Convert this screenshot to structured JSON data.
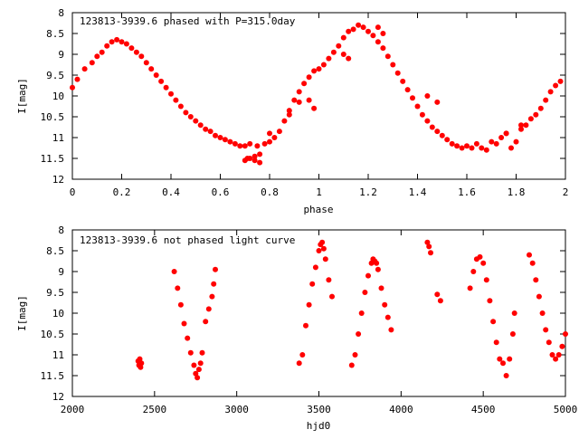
{
  "chart_data": [
    {
      "type": "scatter",
      "title": "123813-3939.6 phased with P=315.0day",
      "xlabel": "phase",
      "ylabel": "I[mag]",
      "xlim": [
        0,
        2
      ],
      "ylim": [
        12,
        8
      ],
      "y_reversed": true,
      "grid": false,
      "x_ticks": [
        "0",
        "0.2",
        "0.4",
        "0.6",
        "0.8",
        "1",
        "1.2",
        "1.4",
        "1.6",
        "1.8",
        "2"
      ],
      "x_tick_values": [
        0,
        0.2,
        0.4,
        0.6,
        0.8,
        1.0,
        1.2,
        1.4,
        1.6,
        1.8,
        2.0
      ],
      "y_ticks": [
        "8",
        "8.5",
        "9",
        "9.5",
        "10",
        "10.5",
        "11",
        "11.5",
        "12"
      ],
      "y_tick_values": [
        8,
        8.5,
        9,
        9.5,
        10,
        10.5,
        11,
        11.5,
        12
      ],
      "marker_color": "#ff0000",
      "series": [
        {
          "x": [
            0.0,
            0.02,
            0.05,
            0.08,
            0.1,
            0.12,
            0.14,
            0.16,
            0.18,
            0.2,
            0.22,
            0.24,
            0.26,
            0.28,
            0.3,
            0.32,
            0.34,
            0.36,
            0.38,
            0.4,
            0.42,
            0.44,
            0.46,
            0.48,
            0.5,
            0.52,
            0.54,
            0.56,
            0.58,
            0.6,
            0.62,
            0.64,
            0.66,
            0.68,
            0.7,
            0.71,
            0.72,
            0.74,
            0.75,
            0.76,
            0.78,
            0.8,
            0.82,
            0.84,
            0.86,
            0.88,
            0.9,
            0.92,
            0.94,
            0.96,
            0.98,
            1.0,
            1.02,
            1.04,
            1.06,
            1.08,
            1.1,
            1.12,
            1.14,
            1.16,
            1.18,
            1.2,
            1.22,
            1.24,
            1.26,
            1.28,
            1.3,
            1.32,
            1.34,
            1.36,
            1.38,
            1.4,
            1.42,
            1.44,
            1.46,
            1.48,
            1.5,
            1.52,
            1.54,
            1.56,
            1.58,
            1.6,
            1.62,
            1.64,
            1.66,
            1.68,
            1.7,
            1.72,
            1.74,
            1.76,
            1.78,
            1.8,
            1.82,
            1.84,
            1.86,
            1.88,
            1.9,
            1.92,
            1.94,
            1.96,
            1.98,
            0.7,
            0.72,
            0.74,
            0.76,
            0.8,
            0.88,
            0.92,
            0.96,
            0.98,
            1.1,
            1.12,
            1.24,
            1.26,
            1.44,
            1.48,
            1.76,
            1.82
          ],
          "y": [
            9.8,
            9.6,
            9.35,
            9.2,
            9.05,
            8.95,
            8.8,
            8.7,
            8.65,
            8.7,
            8.75,
            8.85,
            8.95,
            9.05,
            9.2,
            9.35,
            9.5,
            9.65,
            9.8,
            9.95,
            10.1,
            10.25,
            10.4,
            10.5,
            10.6,
            10.7,
            10.8,
            10.85,
            10.95,
            11.0,
            11.05,
            11.1,
            11.15,
            11.2,
            11.2,
            11.5,
            11.15,
            11.45,
            11.2,
            11.4,
            11.15,
            11.1,
            11.0,
            10.85,
            10.6,
            10.35,
            10.1,
            9.9,
            9.7,
            9.55,
            9.4,
            9.35,
            9.25,
            9.1,
            8.95,
            8.8,
            8.6,
            8.45,
            8.4,
            8.3,
            8.35,
            8.45,
            8.55,
            8.7,
            8.85,
            9.05,
            9.25,
            9.45,
            9.65,
            9.85,
            10.05,
            10.25,
            10.45,
            10.6,
            10.75,
            10.85,
            10.95,
            11.05,
            11.15,
            11.2,
            11.25,
            11.2,
            11.25,
            11.15,
            11.25,
            11.3,
            11.1,
            11.15,
            11.0,
            10.9,
            11.25,
            11.1,
            10.8,
            10.7,
            10.55,
            10.45,
            10.3,
            10.1,
            9.9,
            9.75,
            9.65,
            11.55,
            11.5,
            11.55,
            11.6,
            10.9,
            10.45,
            10.15,
            10.1,
            10.3,
            9.0,
            9.1,
            8.35,
            8.5,
            10.0,
            10.15,
            10.9,
            10.7
          ]
        }
      ]
    },
    {
      "type": "scatter",
      "title": "123813-3939.6 not phased light curve",
      "xlabel": "hjd0",
      "ylabel": "I[mag]",
      "xlim": [
        2000,
        5000
      ],
      "ylim": [
        12,
        8
      ],
      "y_reversed": true,
      "grid": false,
      "x_ticks": [
        "2000",
        "2500",
        "3000",
        "3500",
        "4000",
        "4500",
        "5000"
      ],
      "x_tick_values": [
        2000,
        2500,
        3000,
        3500,
        4000,
        4500,
        5000
      ],
      "y_ticks": [
        "8",
        "8.5",
        "9",
        "9.5",
        "10",
        "10.5",
        "11",
        "11.5",
        "12"
      ],
      "y_tick_values": [
        8,
        8.5,
        9,
        9.5,
        10,
        10.5,
        11,
        11.5,
        12
      ],
      "marker_color": "#ff0000",
      "series": [
        {
          "x": [
            2400,
            2405,
            2410,
            2415,
            2420,
            2620,
            2640,
            2660,
            2680,
            2700,
            2720,
            2740,
            2750,
            2760,
            2770,
            2780,
            2790,
            2810,
            2830,
            2850,
            2860,
            2870,
            3380,
            3400,
            3420,
            3440,
            3460,
            3480,
            3500,
            3510,
            3520,
            3530,
            3540,
            3560,
            3580,
            3700,
            3720,
            3740,
            3760,
            3780,
            3800,
            3820,
            3830,
            3840,
            3850,
            3860,
            3880,
            3900,
            3920,
            3940,
            4160,
            4170,
            4180,
            4220,
            4240,
            4420,
            4440,
            4460,
            4480,
            4500,
            4520,
            4540,
            4560,
            4580,
            4600,
            4620,
            4640,
            4660,
            4680,
            4690,
            4780,
            4800,
            4820,
            4840,
            4860,
            4880,
            4900,
            4920,
            4940,
            4960,
            4980,
            5000
          ],
          "y": [
            11.15,
            11.25,
            11.1,
            11.3,
            11.2,
            9.0,
            9.4,
            9.8,
            10.25,
            10.6,
            10.95,
            11.25,
            11.45,
            11.55,
            11.35,
            11.2,
            10.95,
            10.2,
            9.9,
            9.6,
            9.3,
            8.95,
            11.2,
            11.0,
            10.3,
            9.8,
            9.3,
            8.9,
            8.5,
            8.35,
            8.3,
            8.45,
            8.7,
            9.2,
            9.6,
            11.25,
            11.0,
            10.5,
            10.0,
            9.5,
            9.1,
            8.8,
            8.7,
            8.75,
            8.8,
            8.95,
            9.4,
            9.8,
            10.1,
            10.4,
            8.3,
            8.4,
            8.55,
            9.55,
            9.7,
            9.4,
            9.0,
            8.7,
            8.65,
            8.8,
            9.2,
            9.7,
            10.2,
            10.7,
            11.1,
            11.2,
            11.5,
            11.1,
            10.5,
            10.0,
            8.6,
            8.8,
            9.2,
            9.6,
            10.0,
            10.4,
            10.7,
            11.0,
            11.1,
            11.0,
            10.8,
            10.5
          ]
        }
      ]
    }
  ]
}
